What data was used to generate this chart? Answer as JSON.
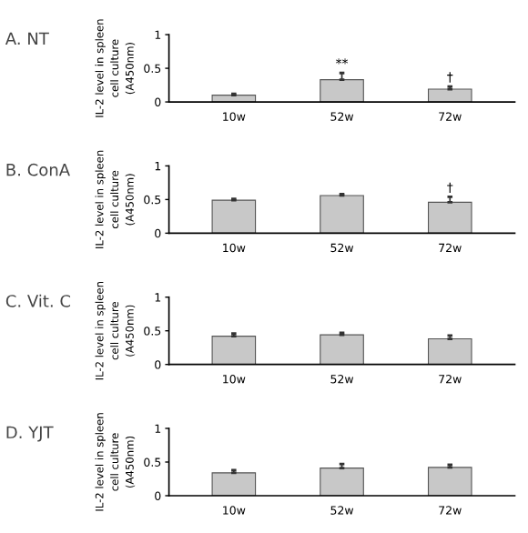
{
  "chart_data": [
    {
      "type": "bar",
      "title": "A. NT",
      "ylabel": "IL-2 level in spleen\ncell culture\n(A450nm)",
      "categories": [
        "10w",
        "52w",
        "72w"
      ],
      "values": [
        0.1,
        0.33,
        0.19
      ],
      "errors": [
        0.02,
        0.1,
        0.04
      ],
      "color": "#c8c8c8",
      "ylim": [
        0,
        1
      ],
      "yticks": [
        0,
        0.5,
        1
      ],
      "grid": false,
      "annotations": [
        {
          "text": "**",
          "x": "52w",
          "y": 0.33
        },
        {
          "text": "†",
          "x": "72w",
          "y": 0.19
        }
      ]
    },
    {
      "type": "bar",
      "title": "B. ConA",
      "ylabel": "IL-2 level in spleen\ncell culture\n(A450nm)",
      "categories": [
        "10w",
        "52w",
        "72w"
      ],
      "values": [
        0.49,
        0.56,
        0.46
      ],
      "errors": [
        0.02,
        0.02,
        0.08
      ],
      "color": "#c8c8c8",
      "ylim": [
        0,
        1
      ],
      "yticks": [
        0,
        0.5,
        1
      ],
      "grid": false,
      "annotations": [
        {
          "text": "†",
          "x": "72w",
          "y": 0.46
        }
      ]
    },
    {
      "type": "bar",
      "title": "C. Vit. C",
      "ylabel": "IL-2 level in spleen\ncell culture\n(A450nm)",
      "categories": [
        "10w",
        "52w",
        "72w"
      ],
      "values": [
        0.42,
        0.44,
        0.38
      ],
      "errors": [
        0.04,
        0.03,
        0.05
      ],
      "color": "#c8c8c8",
      "ylim": [
        0,
        1
      ],
      "yticks": [
        0,
        0.5,
        1
      ],
      "grid": false
    },
    {
      "type": "bar",
      "title": "D. YJT",
      "ylabel": "IL-2 level in spleen\ncell culture\n(A450nm)",
      "categories": [
        "10w",
        "52w",
        "72w"
      ],
      "values": [
        0.34,
        0.41,
        0.42
      ],
      "errors": [
        0.04,
        0.06,
        0.04
      ],
      "color": "#c8c8c8",
      "ylim": [
        0,
        1
      ],
      "yticks": [
        0,
        0.5,
        1
      ],
      "grid": false
    }
  ]
}
